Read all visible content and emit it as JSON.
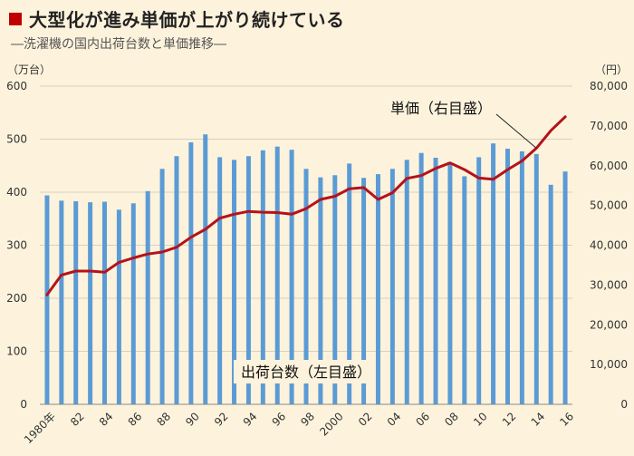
{
  "title": "大型化が進み単価が上がり続けている",
  "subtitle": "―洗濯機の国内出荷台数と単価推移―",
  "colors": {
    "bars": "#5b9bd5",
    "line": "#b5121b",
    "title_marker": "#c00000",
    "background": "#fdf3dc"
  },
  "chart_data": {
    "type": "bar",
    "left_axis_unit": "（万台）",
    "right_axis_unit": "（円）",
    "ylim_left": [
      0,
      600
    ],
    "ylim_right": [
      0,
      80000
    ],
    "left_ticks": [
      "0",
      "100",
      "200",
      "300",
      "400",
      "500",
      "600"
    ],
    "right_ticks": [
      "0",
      "10,000",
      "20,000",
      "30,000",
      "40,000",
      "50,000",
      "60,000",
      "70,000",
      "80,000"
    ],
    "x_tick_labels": [
      {
        "index": 0,
        "label": "1980年"
      },
      {
        "index": 2,
        "label": "82"
      },
      {
        "index": 4,
        "label": "84"
      },
      {
        "index": 6,
        "label": "86"
      },
      {
        "index": 8,
        "label": "88"
      },
      {
        "index": 10,
        "label": "90"
      },
      {
        "index": 12,
        "label": "92"
      },
      {
        "index": 14,
        "label": "94"
      },
      {
        "index": 16,
        "label": "96"
      },
      {
        "index": 18,
        "label": "98"
      },
      {
        "index": 20,
        "label": "2000"
      },
      {
        "index": 22,
        "label": "02"
      },
      {
        "index": 24,
        "label": "04"
      },
      {
        "index": 26,
        "label": "06"
      },
      {
        "index": 28,
        "label": "08"
      },
      {
        "index": 30,
        "label": "10"
      },
      {
        "index": 32,
        "label": "12"
      },
      {
        "index": 34,
        "label": "14"
      },
      {
        "index": 36,
        "label": "16"
      }
    ],
    "years": [
      1980,
      1981,
      1982,
      1983,
      1984,
      1985,
      1986,
      1987,
      1988,
      1989,
      1990,
      1991,
      1992,
      1993,
      1994,
      1995,
      1996,
      1997,
      1998,
      1999,
      2000,
      2001,
      2002,
      2003,
      2004,
      2005,
      2006,
      2007,
      2008,
      2009,
      2010,
      2011,
      2012,
      2013,
      2014,
      2015,
      2016
    ],
    "series": [
      {
        "name": "出荷台数（左目盛）",
        "kind": "bar",
        "axis": "left",
        "values": [
          394,
          384,
          383,
          381,
          382,
          367,
          379,
          402,
          444,
          468,
          494,
          509,
          466,
          461,
          468,
          479,
          486,
          480,
          444,
          428,
          432,
          454,
          427,
          434,
          444,
          461,
          474,
          465,
          456,
          430,
          466,
          492,
          482,
          477,
          472,
          414,
          439
        ]
      },
      {
        "name": "単価（右目盛）",
        "kind": "line",
        "axis": "right",
        "values": [
          27500,
          32500,
          33500,
          33500,
          33200,
          35700,
          36800,
          37800,
          38300,
          39500,
          42000,
          44000,
          46800,
          47800,
          48500,
          48300,
          48200,
          47800,
          49200,
          51500,
          52300,
          54200,
          54500,
          51500,
          53200,
          56800,
          57500,
          59300,
          60700,
          59000,
          56900,
          56600,
          59000,
          61200,
          64400,
          68800,
          72300
        ]
      }
    ]
  }
}
